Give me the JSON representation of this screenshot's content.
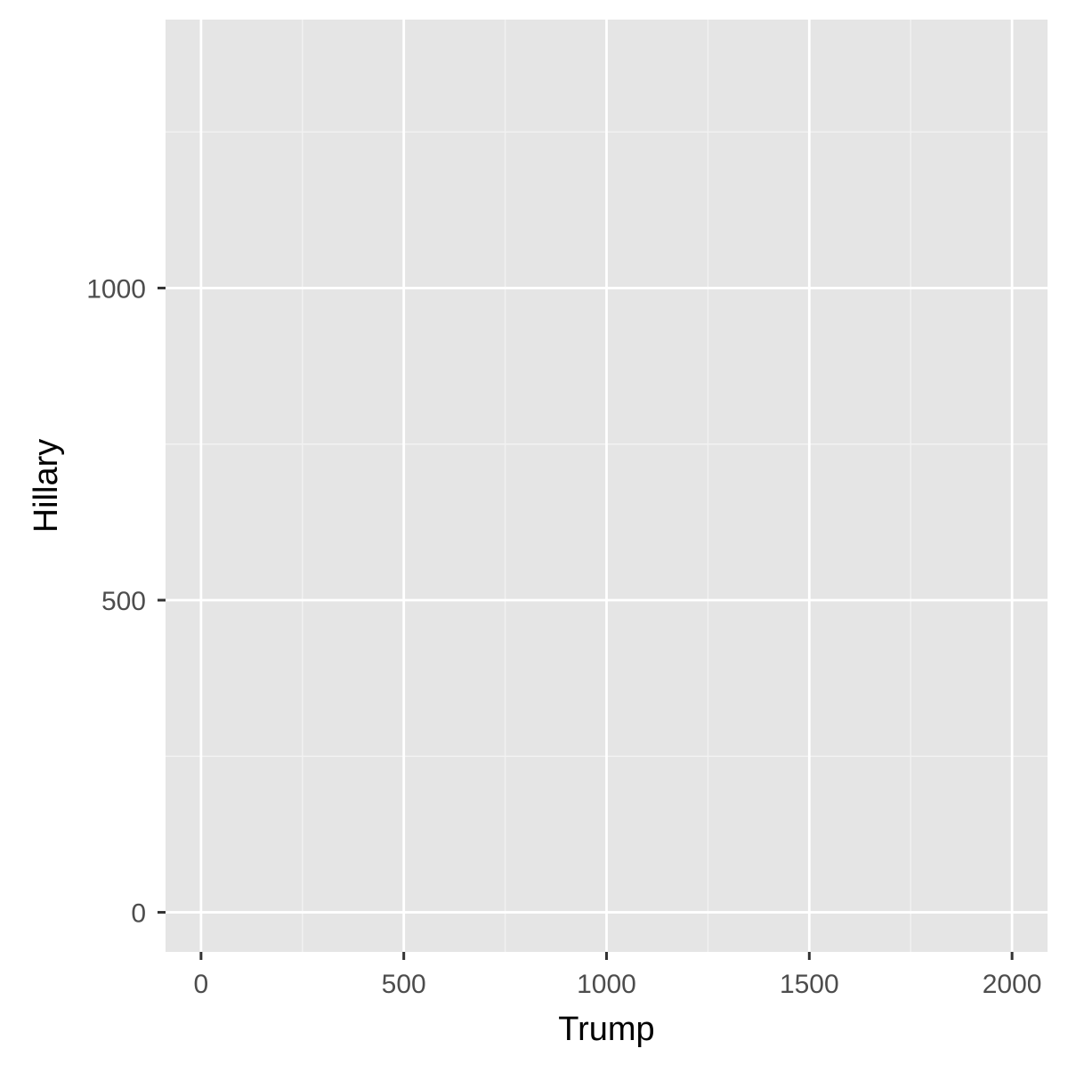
{
  "chart_data": {
    "type": "scatter",
    "title": "",
    "xlabel": "Trump",
    "ylabel": "Hillary",
    "xlim": [
      -87.5,
      2087.5
    ],
    "ylim": [
      -63.4,
      1430
    ],
    "x_ticks": [
      0,
      500,
      1000,
      1500,
      2000
    ],
    "x_tick_labels": [
      "0",
      "500",
      "1000",
      "1500",
      "2000"
    ],
    "x_minor_ticks": [
      250,
      750,
      1250,
      1750
    ],
    "y_ticks": [
      0,
      500,
      1000
    ],
    "y_tick_labels": [
      "0",
      "500",
      "1000"
    ],
    "y_minor_ticks": [
      250,
      750,
      1250
    ],
    "grid": true,
    "series": [
      {
        "x": [],
        "y": []
      }
    ]
  },
  "colors": {
    "panel_background": "#e5e5e5",
    "grid_major": "#ffffff",
    "grid_minor": "#f2f2f2",
    "tick_mark": "#333333",
    "tick_label": "#4d4d4d",
    "axis_title": "#000000"
  }
}
